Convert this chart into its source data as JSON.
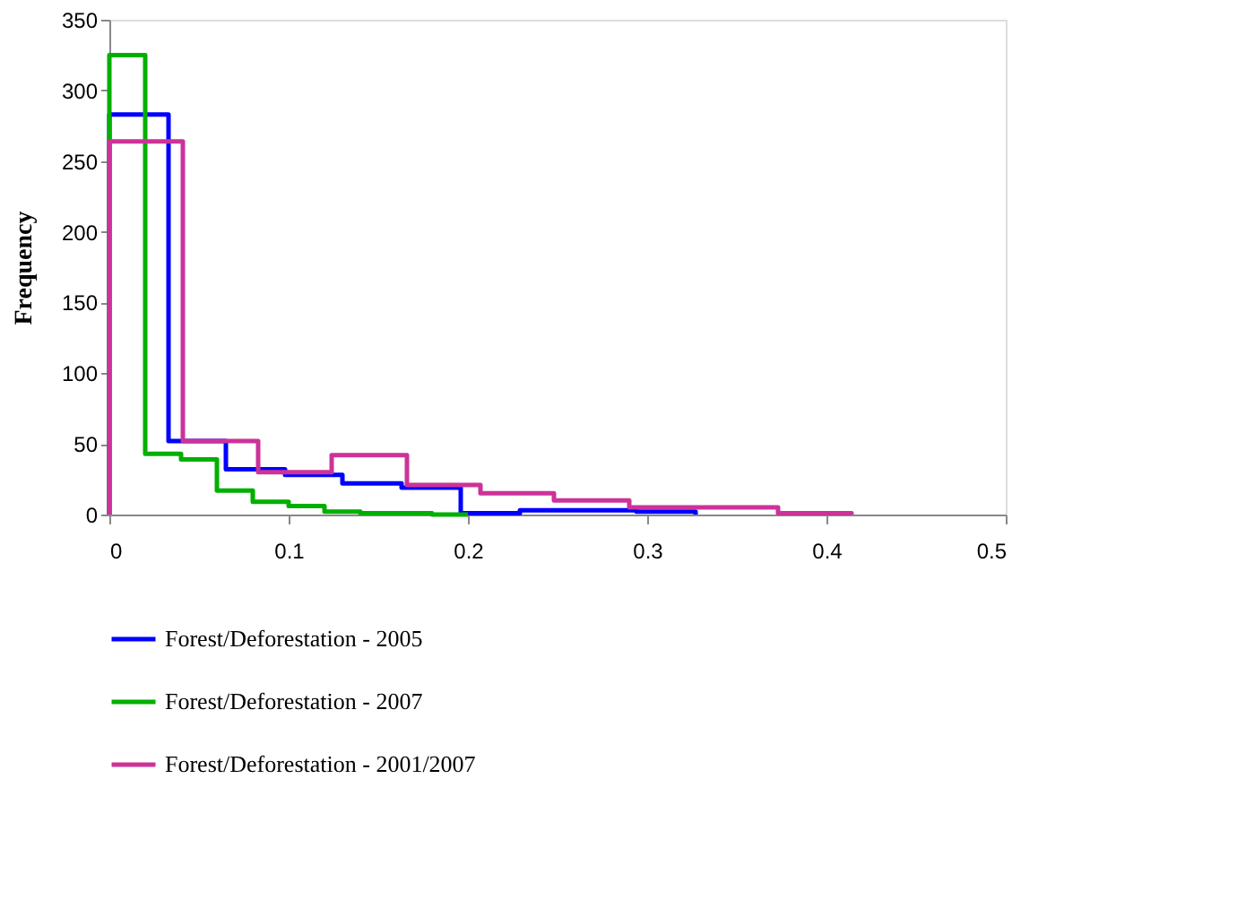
{
  "chart_data": {
    "type": "step",
    "ylabel": "Frequency",
    "series": [
      {
        "name": "Forest/Deforestation - 2005",
        "color": "#0000ff",
        "x": [
          0,
          0,
          0.033,
          0.065,
          0.098,
          0.13,
          0.163,
          0.196,
          0.229,
          0.261,
          0.294,
          0.327
        ],
        "values": [
          0,
          283,
          52,
          32,
          28,
          22,
          19,
          1,
          3,
          3,
          2,
          0
        ]
      },
      {
        "name": "Forest/Deforestation - 2007",
        "color": "#00b000",
        "x": [
          0,
          0,
          0.02,
          0.04,
          0.06,
          0.08,
          0.1,
          0.12,
          0.14,
          0.16,
          0.18,
          0.2
        ],
        "values": [
          0,
          325,
          43,
          39,
          17,
          9,
          6,
          2,
          1,
          1,
          0,
          0
        ]
      },
      {
        "name": "Forest/Deforestation - 2001/2007",
        "color": "#cc3399",
        "x": [
          0,
          0,
          0.041,
          0.083,
          0.124,
          0.166,
          0.207,
          0.248,
          0.29,
          0.331,
          0.373,
          0.414
        ],
        "values": [
          0,
          264,
          52,
          30,
          42,
          21,
          15,
          10,
          5,
          5,
          1,
          0
        ]
      }
    ],
    "xlim": [
      0,
      0.5
    ],
    "xticks": [
      0,
      0.1,
      0.2,
      0.3,
      0.4,
      0.5
    ],
    "ylim": [
      0,
      350
    ],
    "yticks": [
      0,
      50,
      100,
      150,
      200,
      250,
      300,
      350
    ],
    "grid": false,
    "legend": "bottom",
    "marker": "none",
    "line_style": "solid"
  }
}
